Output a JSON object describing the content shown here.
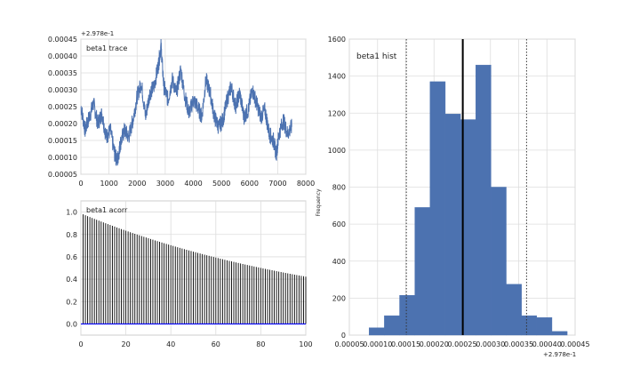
{
  "chart_data": [
    {
      "type": "line",
      "annotation": "beta1 trace",
      "offset_label": "+2.978e-1",
      "xlim": [
        0,
        8000
      ],
      "ylim": [
        5e-05,
        0.00045
      ],
      "xticks": [
        0,
        1000,
        2000,
        3000,
        4000,
        5000,
        6000,
        7000,
        8000
      ],
      "xtick_labels": [
        "0",
        "1000",
        "2000",
        "3000",
        "4000",
        "5000",
        "6000",
        "7000",
        "8000"
      ],
      "yticks": [
        5e-05,
        0.0001,
        0.00015,
        0.0002,
        0.00025,
        0.0003,
        0.00035,
        0.0004,
        0.00045
      ],
      "ytick_labels": [
        "0.00005",
        "0.00010",
        "0.00015",
        "0.00020",
        "0.00025",
        "0.00030",
        "0.00035",
        "0.00040",
        "0.00045"
      ],
      "grid": true,
      "color": "#4C72B0",
      "x": [
        0,
        150,
        300,
        450,
        600,
        750,
        900,
        1050,
        1200,
        1300,
        1400,
        1550,
        1700,
        1850,
        2000,
        2150,
        2300,
        2450,
        2600,
        2750,
        2850,
        2950,
        3100,
        3250,
        3400,
        3550,
        3700,
        3850,
        4000,
        4150,
        4300,
        4450,
        4600,
        4750,
        4900,
        5050,
        5200,
        5350,
        5500,
        5650,
        5800,
        5950,
        6100,
        6250,
        6400,
        6550,
        6700,
        6850,
        6950,
        7050,
        7200,
        7350,
        7500
      ],
      "y": [
        0.00025,
        0.00018,
        0.00022,
        0.00026,
        0.0002,
        0.00023,
        0.00016,
        0.00018,
        0.00011,
        9e-05,
        0.00014,
        0.00018,
        0.00016,
        0.00021,
        0.00028,
        0.00032,
        0.00022,
        0.00029,
        0.00031,
        0.00037,
        0.00043,
        0.00031,
        0.00027,
        0.00033,
        0.00029,
        0.00036,
        0.00028,
        0.00023,
        0.00027,
        0.00025,
        0.00022,
        0.00033,
        0.00029,
        0.00022,
        0.00019,
        0.00021,
        0.00027,
        0.00031,
        0.00025,
        0.00029,
        0.00022,
        0.00024,
        0.0003,
        0.00026,
        0.00022,
        0.00024,
        0.00017,
        0.00015,
        0.00011,
        0.00017,
        0.00021,
        0.00017,
        0.00019
      ]
    },
    {
      "type": "bar",
      "annotation": "beta1 acorr",
      "xlim": [
        0,
        100
      ],
      "ylim": [
        -0.1,
        1.1
      ],
      "xticks": [
        0,
        20,
        40,
        60,
        80,
        100
      ],
      "xtick_labels": [
        "0",
        "20",
        "40",
        "60",
        "80",
        "100"
      ],
      "yticks": [
        0.0,
        0.2,
        0.4,
        0.6,
        0.8,
        1.0
      ],
      "ytick_labels": [
        "0.0",
        "0.2",
        "0.4",
        "0.6",
        "0.8",
        "1.0"
      ],
      "grid": true,
      "lag_range": [
        1,
        100
      ],
      "decay_rate": 0.0085,
      "start_value": 0.98,
      "baseline_color": "#0000ff"
    },
    {
      "type": "bar",
      "annotation": "beta1 hist",
      "ylabel": "Frequency",
      "offset_label": "+2.978e-1",
      "xlim": [
        5e-05,
        0.00045
      ],
      "ylim": [
        0,
        1600
      ],
      "xticks": [
        5e-05,
        0.0001,
        0.00015,
        0.0002,
        0.00025,
        0.0003,
        0.00035,
        0.0004,
        0.00045
      ],
      "xtick_labels": [
        "0.00005",
        "0.00010",
        "0.00015",
        "0.00020",
        "0.00025",
        "0.00030",
        "0.00035",
        "0.00040",
        "0.00045"
      ],
      "yticks": [
        0,
        200,
        400,
        600,
        800,
        1000,
        1200,
        1400,
        1600
      ],
      "ytick_labels": [
        "0",
        "200",
        "400",
        "600",
        "800",
        "1000",
        "1200",
        "1400",
        "1600"
      ],
      "grid": true,
      "color": "#4C72B0",
      "bin_edges": [
        8.5e-05,
        0.000112,
        0.000139,
        0.000166,
        0.000193,
        0.00022,
        0.000247,
        0.000274,
        0.000301,
        0.000328,
        0.000355,
        0.000382,
        0.000409,
        0.000436
      ],
      "counts": [
        40,
        105,
        215,
        690,
        1370,
        1195,
        1165,
        1460,
        800,
        275,
        105,
        95,
        20
      ],
      "mean": 0.000251,
      "interval": [
        0.000151,
        0.000364
      ]
    }
  ]
}
